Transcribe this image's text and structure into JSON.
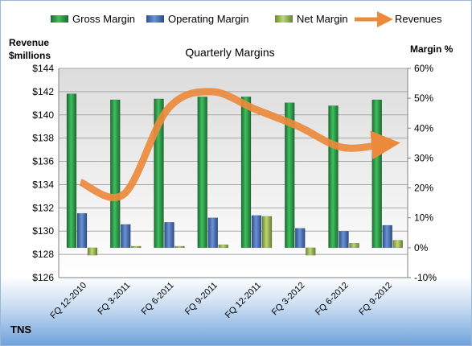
{
  "chart_data": {
    "type": "bar",
    "title": "Quarterly Margins",
    "source_label": "TNS",
    "y_left_label_line1": "Revenue",
    "y_left_label_line2": "$millions",
    "y_right_label": "Margin %",
    "categories": [
      "FQ 12-2010",
      "FQ 3-2011",
      "FQ 6-2011",
      "FQ 9-2011",
      "FQ 12-2011",
      "FQ 3-2012",
      "FQ 6-2012",
      "FQ 9-2012"
    ],
    "y_left": {
      "min": 126,
      "max": 144,
      "step": 2,
      "ticks": [
        "$126",
        "$128",
        "$130",
        "$132",
        "$134",
        "$136",
        "$138",
        "$140",
        "$142",
        "$144"
      ]
    },
    "y_right": {
      "min": -10,
      "max": 60,
      "step": 10,
      "ticks": [
        "-10%",
        "0%",
        "10%",
        "20%",
        "30%",
        "40%",
        "50%",
        "60%"
      ]
    },
    "grid": true,
    "legend_position": "top",
    "series": [
      {
        "name": "Gross Margin",
        "axis": "right",
        "kind": "bar",
        "color": "#2e9e4a",
        "values": [
          51.5,
          49.5,
          49.8,
          50.5,
          50.5,
          48.5,
          47.5,
          49.5
        ]
      },
      {
        "name": "Operating Margin",
        "axis": "right",
        "kind": "bar",
        "color": "#4a72b8",
        "values": [
          11.5,
          7.8,
          8.5,
          10.0,
          10.8,
          6.5,
          5.5,
          7.5
        ]
      },
      {
        "name": "Net Margin",
        "axis": "right",
        "kind": "bar",
        "color": "#9dbb5a",
        "values": [
          -2.5,
          0.5,
          0.5,
          1.0,
          10.5,
          -2.5,
          1.5,
          2.5
        ]
      },
      {
        "name": "Revenues",
        "axis": "left",
        "kind": "line",
        "color": "#ec8a3c",
        "values": [
          134.2,
          133.2,
          140.5,
          142.0,
          140.5,
          139.0,
          137.2,
          137.5
        ]
      }
    ]
  }
}
